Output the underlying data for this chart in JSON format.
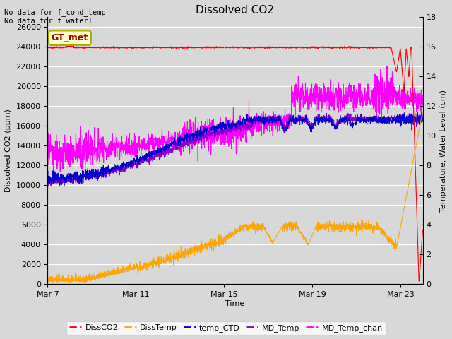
{
  "title": "Dissolved CO2",
  "xlabel": "Time",
  "ylabel_left": "Dissolved CO2 (ppm)",
  "ylabel_right": "Temperature, Water Level (cm)",
  "annotation1": "No data for f_cond_temp",
  "annotation2": "No data for f_waterT",
  "gt_met_label": "GT_met",
  "ylim_left": [
    0,
    27000
  ],
  "ylim_right": [
    0,
    18
  ],
  "yticks_left": [
    0,
    2000,
    4000,
    6000,
    8000,
    10000,
    12000,
    14000,
    16000,
    18000,
    20000,
    22000,
    24000,
    26000
  ],
  "yticks_right": [
    0,
    2,
    4,
    6,
    8,
    10,
    12,
    14,
    16,
    18
  ],
  "xtick_labels": [
    "Mar 7",
    "Mar 11",
    "Mar 15",
    "Mar 19",
    "Mar 23"
  ],
  "xtick_pos": [
    0,
    4,
    8,
    12,
    16
  ],
  "xlim": [
    0,
    17
  ],
  "colors": {
    "DissCO2": "#ff0000",
    "DissTemp": "#ffa500",
    "temp_CTD": "#0000cc",
    "MD_Temp": "#8800cc",
    "MD_Temp_chan": "#ff00ff"
  },
  "background_color": "#d8d8d8",
  "grid_color": "#ffffff",
  "fig_facecolor": "#d8d8d8",
  "n_points": 2000
}
